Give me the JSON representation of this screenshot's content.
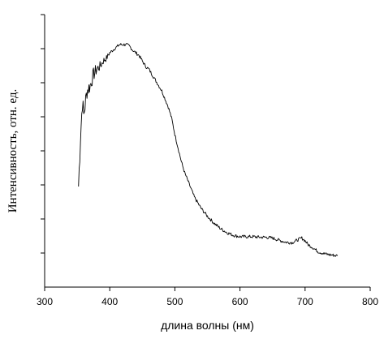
{
  "chart_data": {
    "type": "line",
    "xlabel": "длина волны (нм)",
    "ylabel": "Интенсивность, отн. ед.",
    "xlim": [
      300,
      800
    ],
    "ylim": [
      0,
      1
    ],
    "x_ticks": [
      "300",
      "400",
      "500",
      "600",
      "700",
      "800"
    ],
    "y_tick_count": 8,
    "y_tick_labels_shown": false,
    "grid": false,
    "legend": "none",
    "line_color": "#000000",
    "series": [
      {
        "points": [
          [
            352,
            0.37
          ],
          [
            355,
            0.55
          ],
          [
            358,
            0.68
          ],
          [
            360,
            0.63
          ],
          [
            365,
            0.72
          ],
          [
            370,
            0.74
          ],
          [
            375,
            0.78
          ],
          [
            380,
            0.8
          ],
          [
            385,
            0.81
          ],
          [
            390,
            0.83
          ],
          [
            395,
            0.84
          ],
          [
            400,
            0.86
          ],
          [
            405,
            0.87
          ],
          [
            410,
            0.88
          ],
          [
            415,
            0.89
          ],
          [
            420,
            0.89
          ],
          [
            425,
            0.89
          ],
          [
            430,
            0.885
          ],
          [
            435,
            0.87
          ],
          [
            440,
            0.86
          ],
          [
            445,
            0.85
          ],
          [
            450,
            0.83
          ],
          [
            455,
            0.81
          ],
          [
            460,
            0.8
          ],
          [
            465,
            0.78
          ],
          [
            470,
            0.76
          ],
          [
            475,
            0.74
          ],
          [
            480,
            0.72
          ],
          [
            485,
            0.69
          ],
          [
            490,
            0.66
          ],
          [
            495,
            0.62
          ],
          [
            500,
            0.56
          ],
          [
            505,
            0.51
          ],
          [
            510,
            0.46
          ],
          [
            515,
            0.42
          ],
          [
            520,
            0.39
          ],
          [
            525,
            0.36
          ],
          [
            530,
            0.33
          ],
          [
            540,
            0.29
          ],
          [
            550,
            0.26
          ],
          [
            560,
            0.235
          ],
          [
            570,
            0.215
          ],
          [
            580,
            0.2
          ],
          [
            590,
            0.19
          ],
          [
            600,
            0.185
          ],
          [
            610,
            0.185
          ],
          [
            620,
            0.185
          ],
          [
            630,
            0.183
          ],
          [
            640,
            0.183
          ],
          [
            650,
            0.18
          ],
          [
            660,
            0.172
          ],
          [
            670,
            0.165
          ],
          [
            680,
            0.163
          ],
          [
            690,
            0.175
          ],
          [
            695,
            0.18
          ],
          [
            700,
            0.17
          ],
          [
            705,
            0.155
          ],
          [
            710,
            0.148
          ],
          [
            720,
            0.13
          ],
          [
            730,
            0.122
          ],
          [
            740,
            0.118
          ],
          [
            750,
            0.115
          ]
        ]
      }
    ]
  }
}
